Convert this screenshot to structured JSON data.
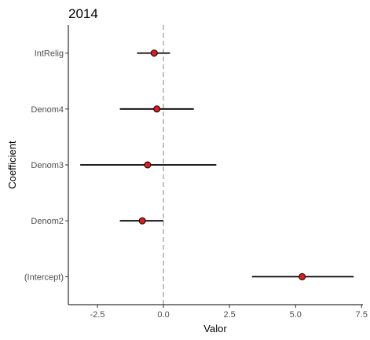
{
  "chart_data": {
    "type": "scatter",
    "subtype": "coefficient-plot",
    "title": "2014",
    "xlabel": "Valor",
    "ylabel": "Coefficient",
    "xlim": [
      -3.6,
      7.55
    ],
    "xticks": [
      -2.5,
      0.0,
      2.5,
      5.0,
      7.5
    ],
    "xtick_labels": [
      "-2.5",
      "0.0",
      "2.5",
      "5.0",
      "7.5"
    ],
    "reference_line": {
      "x": 0,
      "style": "dashed",
      "color": "#b3b3b3"
    },
    "grid": false,
    "categories": [
      "IntRelig",
      "Denom4",
      "Denom3",
      "Denom2",
      "(Intercept)"
    ],
    "estimates": [
      -0.35,
      -0.25,
      -0.6,
      -0.8,
      5.25
    ],
    "lower": [
      -1.0,
      -1.65,
      -3.15,
      -1.65,
      3.35
    ],
    "upper": [
      0.25,
      1.15,
      2.0,
      0.0,
      7.2
    ],
    "point_color": "#e31a1c",
    "errorbar_color": "#000000"
  }
}
